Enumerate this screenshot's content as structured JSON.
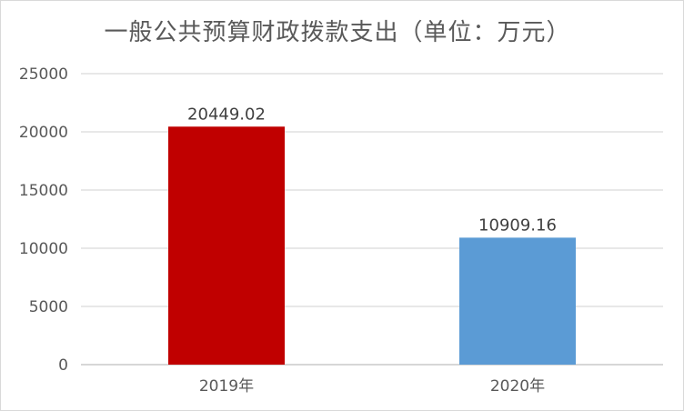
{
  "chart_data": {
    "type": "bar",
    "title": "一般公共预算财政拨款支出（单位：万元）",
    "categories": [
      "2019年",
      "2020年"
    ],
    "values": [
      20449.02,
      10909.16
    ],
    "value_labels": [
      "20449.02",
      "10909.16"
    ],
    "bar_colors": [
      "#c00000",
      "#5b9bd5"
    ],
    "ylim": [
      0,
      25000
    ],
    "yticks": [
      0,
      5000,
      10000,
      15000,
      20000,
      25000
    ],
    "ytick_labels": [
      "0",
      "5000",
      "10000",
      "15000",
      "20000",
      "25000"
    ],
    "grid": true,
    "legend": "none",
    "xlabel": "",
    "ylabel": ""
  },
  "colors": {
    "grid": "#d9d9d9",
    "axis": "#bfbfbf"
  }
}
